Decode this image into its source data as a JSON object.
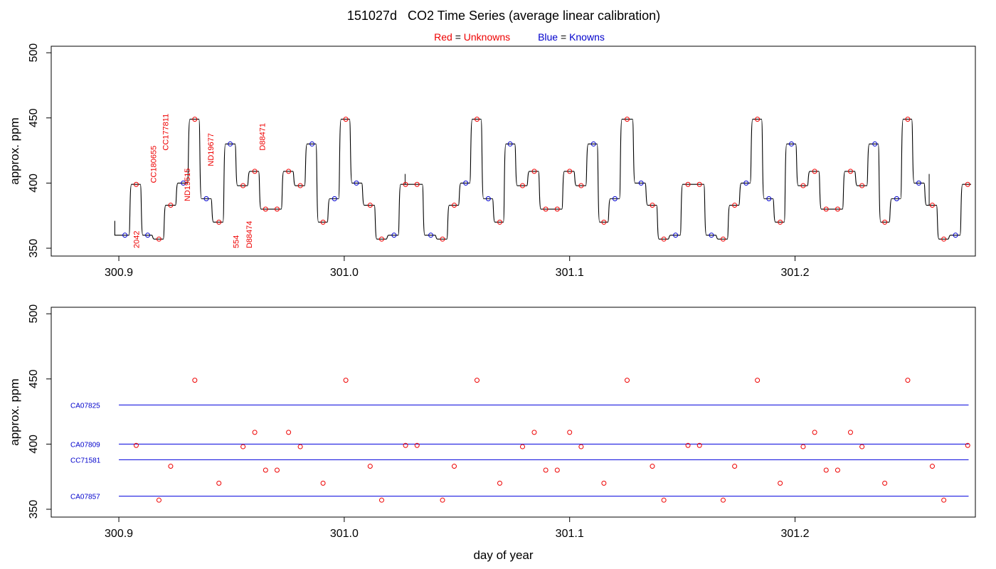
{
  "title": "151027d   CO2 Time Series (average linear calibration)",
  "legend": {
    "red_word": "Red",
    "red_label": "Unknowns",
    "blue_word": "Blue",
    "blue_label": "Knowns",
    "equals": "="
  },
  "colors": {
    "unknown": "#ee0000",
    "known": "#0000cc",
    "trace": "#000000",
    "reference_line": "#0000dd"
  },
  "chart_data": [
    {
      "type": "line",
      "panel": "top",
      "ylabel": "approx. ppm",
      "xlim": [
        300.87,
        301.28
      ],
      "ylim": [
        344,
        505
      ],
      "xticks": [
        300.9,
        301.0,
        301.1,
        301.2
      ],
      "xtick_labels": [
        "300.9",
        "301.0",
        "301.1",
        "301.2"
      ],
      "yticks": [
        350,
        400,
        450,
        500
      ],
      "ytick_labels": [
        "350",
        "400",
        "450",
        "500"
      ],
      "series": [
        {
          "name": "Knowns",
          "color": "#0000cc",
          "points": [
            [
              300.9027,
              360
            ],
            [
              300.9128,
              360
            ],
            [
              300.9286,
              400
            ],
            [
              300.9388,
              388
            ],
            [
              300.9494,
              430
            ],
            [
              300.9857,
              430
            ],
            [
              300.9957,
              388
            ],
            [
              301.0054,
              400
            ],
            [
              301.0221,
              360
            ],
            [
              301.0384,
              360
            ],
            [
              301.0539,
              400
            ],
            [
              301.0639,
              388
            ],
            [
              301.0736,
              430
            ],
            [
              301.1201,
              388
            ],
            [
              301.1106,
              430
            ],
            [
              301.1317,
              400
            ],
            [
              301.147,
              360
            ],
            [
              301.1629,
              360
            ],
            [
              301.1783,
              400
            ],
            [
              301.1884,
              388
            ],
            [
              301.1984,
              430
            ],
            [
              301.2354,
              430
            ],
            [
              301.2451,
              388
            ],
            [
              301.2549,
              400
            ],
            [
              301.2712,
              360
            ]
          ]
        },
        {
          "name": "Unknowns",
          "color": "#ee0000",
          "points": [
            [
              300.9077,
              399
            ],
            [
              300.9178,
              357
            ],
            [
              300.923,
              383
            ],
            [
              300.9337,
              449
            ],
            [
              300.9444,
              370
            ],
            [
              300.9551,
              398
            ],
            [
              300.9603,
              409
            ],
            [
              300.9651,
              380
            ],
            [
              300.9702,
              380
            ],
            [
              300.9753,
              409
            ],
            [
              300.9805,
              398
            ],
            [
              300.9906,
              370
            ],
            [
              301.0007,
              449
            ],
            [
              301.0115,
              383
            ],
            [
              301.0166,
              357
            ],
            [
              301.0272,
              399
            ],
            [
              301.0323,
              399
            ],
            [
              301.0436,
              357
            ],
            [
              301.0488,
              383
            ],
            [
              301.0589,
              449
            ],
            [
              301.069,
              370
            ],
            [
              301.0791,
              398
            ],
            [
              301.0843,
              409
            ],
            [
              301.0894,
              380
            ],
            [
              301.0945,
              380
            ],
            [
              301.1,
              409
            ],
            [
              301.1051,
              398
            ],
            [
              301.1152,
              370
            ],
            [
              301.1255,
              449
            ],
            [
              301.1367,
              383
            ],
            [
              301.1418,
              357
            ],
            [
              301.1525,
              399
            ],
            [
              301.1576,
              399
            ],
            [
              301.1681,
              357
            ],
            [
              301.1732,
              383
            ],
            [
              301.1833,
              449
            ],
            [
              301.1934,
              370
            ],
            [
              301.2036,
              398
            ],
            [
              301.2087,
              409
            ],
            [
              301.2138,
              380
            ],
            [
              301.2189,
              380
            ],
            [
              301.2246,
              409
            ],
            [
              301.2297,
              398
            ],
            [
              301.2398,
              370
            ],
            [
              301.25,
              449
            ],
            [
              301.2609,
              383
            ],
            [
              301.266,
              357
            ],
            [
              301.2766,
              399
            ]
          ]
        }
      ],
      "sample_labels": [
        {
          "text": "2042",
          "x": 300.909,
          "y": 350
        },
        {
          "text": "CC180655",
          "x": 300.9165,
          "y": 400
        },
        {
          "text": "CC177811",
          "x": 300.922,
          "y": 425
        },
        {
          "text": "ND19515",
          "x": 300.9315,
          "y": 386
        },
        {
          "text": "ND19677",
          "x": 300.942,
          "y": 413
        },
        {
          "text": "554",
          "x": 300.9532,
          "y": 350
        },
        {
          "text": "D88474",
          "x": 300.959,
          "y": 350
        },
        {
          "text": "D88471",
          "x": 300.9648,
          "y": 425
        }
      ]
    },
    {
      "type": "scatter",
      "panel": "bottom",
      "xlabel": "day of year",
      "ylabel": "approx. ppm",
      "xlim": [
        300.87,
        301.28
      ],
      "ylim": [
        344,
        505
      ],
      "xticks": [
        300.9,
        301.0,
        301.1,
        301.2
      ],
      "xtick_labels": [
        "300.9",
        "301.0",
        "301.1",
        "301.2"
      ],
      "yticks": [
        350,
        400,
        450,
        500
      ],
      "ytick_labels": [
        "350",
        "400",
        "450",
        "500"
      ],
      "reference_lines": [
        {
          "label": "CA07825",
          "y": 430,
          "x_start": 300.9,
          "x_end": 301.277
        },
        {
          "label": "CA07809",
          "y": 400,
          "x_start": 300.9,
          "x_end": 301.277
        },
        {
          "label": "CC71581",
          "y": 388,
          "x_start": 300.9,
          "x_end": 301.277
        },
        {
          "label": "CA07857",
          "y": 360,
          "x_start": 300.9,
          "x_end": 301.277
        }
      ],
      "series": [
        {
          "name": "Unknowns",
          "color": "#ee0000",
          "points": [
            [
              300.9077,
              399
            ],
            [
              300.9178,
              357
            ],
            [
              300.923,
              383
            ],
            [
              300.9337,
              449
            ],
            [
              300.9444,
              370
            ],
            [
              300.9551,
              398
            ],
            [
              300.9603,
              409
            ],
            [
              300.9651,
              380
            ],
            [
              300.9702,
              380
            ],
            [
              300.9753,
              409
            ],
            [
              300.9805,
              398
            ],
            [
              300.9906,
              370
            ],
            [
              301.0007,
              449
            ],
            [
              301.0115,
              383
            ],
            [
              301.0166,
              357
            ],
            [
              301.0272,
              399
            ],
            [
              301.0323,
              399
            ],
            [
              301.0436,
              357
            ],
            [
              301.0488,
              383
            ],
            [
              301.0589,
              449
            ],
            [
              301.069,
              370
            ],
            [
              301.0791,
              398
            ],
            [
              301.0843,
              409
            ],
            [
              301.0894,
              380
            ],
            [
              301.0945,
              380
            ],
            [
              301.1,
              409
            ],
            [
              301.1051,
              398
            ],
            [
              301.1152,
              370
            ],
            [
              301.1255,
              449
            ],
            [
              301.1367,
              383
            ],
            [
              301.1418,
              357
            ],
            [
              301.1525,
              399
            ],
            [
              301.1576,
              399
            ],
            [
              301.1681,
              357
            ],
            [
              301.1732,
              383
            ],
            [
              301.1833,
              449
            ],
            [
              301.1934,
              370
            ],
            [
              301.2036,
              398
            ],
            [
              301.2087,
              409
            ],
            [
              301.2138,
              380
            ],
            [
              301.2189,
              380
            ],
            [
              301.2246,
              409
            ],
            [
              301.2297,
              398
            ],
            [
              301.2398,
              370
            ],
            [
              301.25,
              449
            ],
            [
              301.2609,
              383
            ],
            [
              301.266,
              357
            ],
            [
              301.2766,
              399
            ]
          ]
        }
      ]
    }
  ]
}
